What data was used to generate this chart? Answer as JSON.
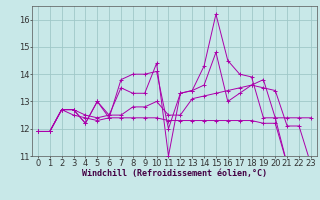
{
  "background_color": "#c8e8e8",
  "grid_color": "#a0c8c8",
  "line_color": "#aa00aa",
  "xlabel": "Windchill (Refroidissement éolien,°C)",
  "xlabel_fontsize": 6.0,
  "tick_fontsize": 6.0,
  "xlim": [
    -0.5,
    23.5
  ],
  "ylim": [
    11.0,
    16.5
  ],
  "yticks": [
    11,
    12,
    13,
    14,
    15,
    16
  ],
  "xticks": [
    0,
    1,
    2,
    3,
    4,
    5,
    6,
    7,
    8,
    9,
    10,
    11,
    12,
    13,
    14,
    15,
    16,
    17,
    18,
    19,
    20,
    21,
    22,
    23
  ],
  "lines": [
    {
      "x": [
        0,
        1,
        2,
        3,
        4,
        5,
        6,
        7,
        8,
        9,
        10,
        11,
        12,
        13,
        14,
        15,
        16,
        17,
        18,
        19,
        20,
        21,
        22,
        23
      ],
      "y": [
        11.9,
        11.9,
        12.7,
        12.7,
        12.2,
        13.0,
        12.5,
        13.5,
        13.3,
        13.3,
        14.4,
        11.0,
        13.3,
        13.4,
        14.3,
        16.2,
        14.5,
        14.0,
        13.9,
        12.4,
        12.4,
        10.7,
        10.7,
        10.7
      ]
    },
    {
      "x": [
        0,
        1,
        2,
        3,
        4,
        5,
        6,
        7,
        8,
        9,
        10,
        11,
        12,
        13,
        14,
        15,
        16,
        17,
        18,
        19,
        20,
        21,
        22,
        23
      ],
      "y": [
        11.9,
        11.9,
        12.7,
        12.7,
        12.2,
        13.0,
        12.4,
        13.8,
        14.0,
        14.0,
        14.1,
        12.0,
        13.3,
        13.4,
        13.6,
        14.8,
        13.0,
        13.3,
        13.6,
        13.8,
        12.4,
        12.4,
        12.4,
        12.4
      ]
    },
    {
      "x": [
        0,
        1,
        2,
        3,
        4,
        5,
        6,
        7,
        8,
        9,
        10,
        11,
        12,
        13,
        14,
        15,
        16,
        17,
        18,
        19,
        20,
        21,
        22,
        23
      ],
      "y": [
        11.9,
        11.9,
        12.7,
        12.7,
        12.5,
        12.4,
        12.5,
        12.5,
        12.8,
        12.8,
        13.0,
        12.5,
        12.5,
        13.1,
        13.2,
        13.3,
        13.4,
        13.5,
        13.6,
        13.5,
        13.4,
        12.1,
        12.1,
        10.7
      ]
    },
    {
      "x": [
        0,
        1,
        2,
        3,
        4,
        5,
        6,
        7,
        8,
        9,
        10,
        11,
        12,
        13,
        14,
        15,
        16,
        17,
        18,
        19,
        20,
        21,
        22,
        23
      ],
      "y": [
        11.9,
        11.9,
        12.7,
        12.5,
        12.4,
        12.3,
        12.4,
        12.4,
        12.4,
        12.4,
        12.4,
        12.3,
        12.3,
        12.3,
        12.3,
        12.3,
        12.3,
        12.3,
        12.3,
        12.2,
        12.2,
        10.7,
        10.7,
        10.7
      ]
    }
  ]
}
